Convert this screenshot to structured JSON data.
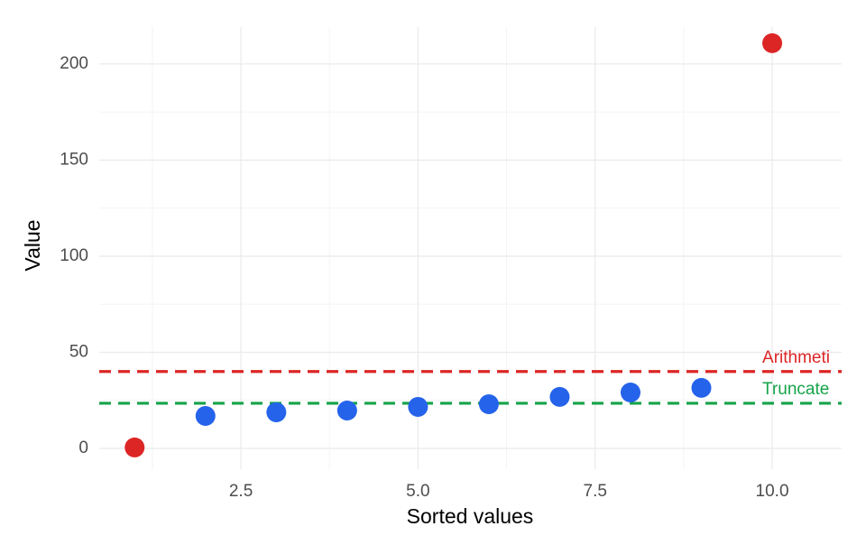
{
  "chart_data": {
    "type": "scatter",
    "x_label": "Sorted values",
    "y_label": "Value",
    "x": [
      1,
      2,
      3,
      4,
      5,
      6,
      7,
      8,
      9,
      10
    ],
    "series": [
      {
        "values": [
          0.5,
          16.9,
          18.8,
          19.7,
          21.6,
          23,
          26.8,
          29.1,
          31.5,
          210.8
        ],
        "colors": [
          "#dc2626",
          "#2563eb",
          "#2563eb",
          "#2563eb",
          "#2563eb",
          "#2563eb",
          "#2563eb",
          "#2563eb",
          "#2563eb",
          "#dc2626"
        ]
      }
    ],
    "reference_lines": [
      {
        "value": 40,
        "label": "Arithmeti",
        "label_x": 9.86,
        "label_y": 47,
        "color": "#dc2626"
      },
      {
        "value": 23.5,
        "label": "Truncate",
        "label_x": 9.86,
        "label_y": 30.5,
        "color": "#16a34a"
      }
    ],
    "xlim": [
      0.5,
      10.98
    ],
    "ylim": [
      -10.8,
      219.2
    ],
    "xticks": [
      {
        "value": 2.5,
        "label": "2.5"
      },
      {
        "value": 5,
        "label": "5.0"
      },
      {
        "value": 7.5,
        "label": "7.5"
      },
      {
        "value": 10,
        "label": "10.0"
      }
    ],
    "yticks": [
      0,
      50,
      100,
      150,
      200
    ],
    "xminorticks": [
      1.25,
      3.75,
      6.25,
      8.75
    ],
    "yminorticks": [
      25,
      75,
      125,
      175
    ],
    "grid": true
  }
}
